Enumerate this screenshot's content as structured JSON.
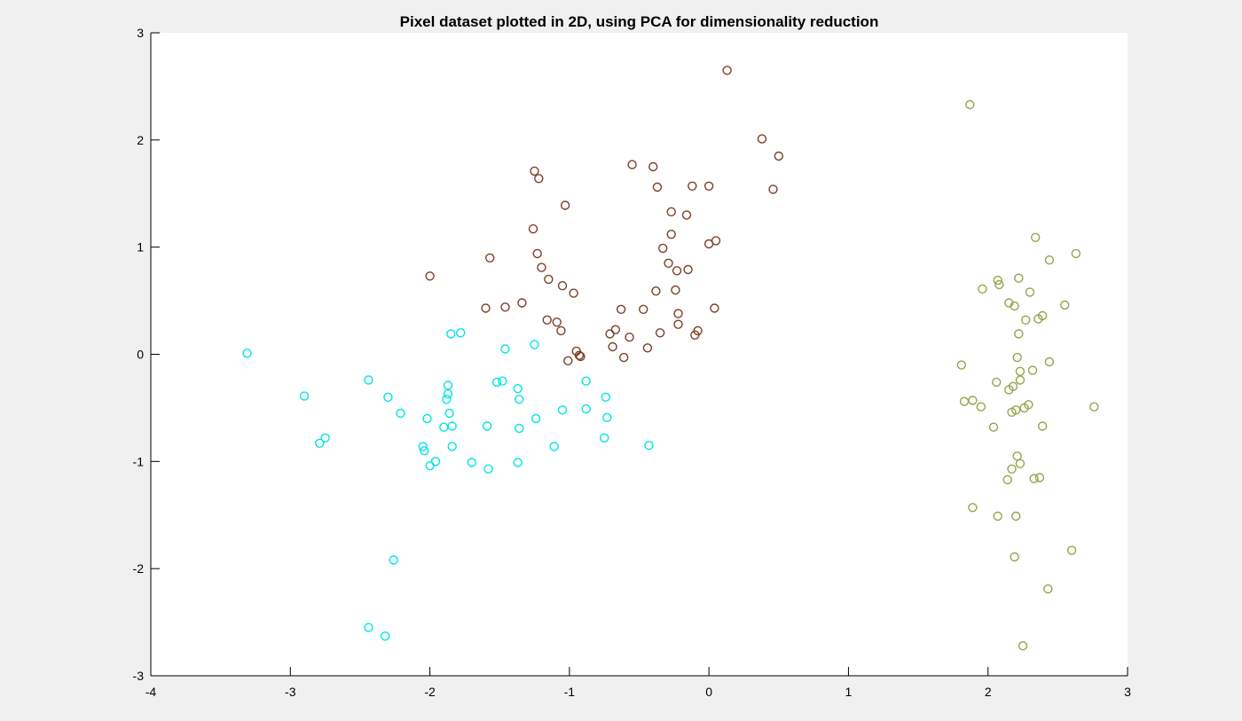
{
  "chart_data": {
    "type": "scatter",
    "title": "Pixel dataset plotted in 2D, using PCA for dimensionality reduction",
    "xlabel": "",
    "ylabel": "",
    "xlim": [
      -4,
      3
    ],
    "ylim": [
      -3,
      3
    ],
    "xticks": [
      "-4",
      "-3",
      "-2",
      "-1",
      "0",
      "1",
      "2",
      "3"
    ],
    "yticks": [
      "-3",
      "-2",
      "-1",
      "0",
      "1",
      "2",
      "3"
    ],
    "grid": false,
    "marker": "open-circle",
    "series": [
      {
        "color": "#00e5e5",
        "points": [
          [
            -3.31,
            0.01
          ],
          [
            -2.9,
            -0.39
          ],
          [
            -2.79,
            -0.83
          ],
          [
            -2.75,
            -0.78
          ],
          [
            -2.44,
            -0.24
          ],
          [
            -2.3,
            -0.4
          ],
          [
            -2.21,
            -0.55
          ],
          [
            -2.05,
            -0.86
          ],
          [
            -2.04,
            -0.9
          ],
          [
            -2.02,
            -0.6
          ],
          [
            -2.0,
            -1.04
          ],
          [
            -1.96,
            -1.0
          ],
          [
            -1.9,
            -0.68
          ],
          [
            -1.88,
            -0.42
          ],
          [
            -1.87,
            -0.37
          ],
          [
            -1.87,
            -0.29
          ],
          [
            -1.86,
            -0.55
          ],
          [
            -1.84,
            -0.67
          ],
          [
            -1.84,
            -0.86
          ],
          [
            -1.85,
            0.19
          ],
          [
            -1.78,
            0.2
          ],
          [
            -1.7,
            -1.01
          ],
          [
            -1.59,
            -0.67
          ],
          [
            -1.58,
            -1.07
          ],
          [
            -1.52,
            -0.26
          ],
          [
            -1.48,
            -0.25
          ],
          [
            -1.46,
            0.05
          ],
          [
            -1.37,
            -0.32
          ],
          [
            -1.36,
            -0.42
          ],
          [
            -1.36,
            -0.69
          ],
          [
            -1.37,
            -1.01
          ],
          [
            -1.25,
            0.09
          ],
          [
            -1.24,
            -0.6
          ],
          [
            -1.11,
            -0.86
          ],
          [
            -1.05,
            -0.52
          ],
          [
            -0.88,
            -0.25
          ],
          [
            -0.88,
            -0.51
          ],
          [
            -0.74,
            -0.4
          ],
          [
            -0.73,
            -0.59
          ],
          [
            -0.75,
            -0.78
          ],
          [
            -0.43,
            -0.85
          ],
          [
            -2.26,
            -1.92
          ],
          [
            -2.44,
            -2.55
          ],
          [
            -2.32,
            -2.63
          ]
        ]
      },
      {
        "color": "#7a3f26",
        "points": [
          [
            0.13,
            2.65
          ],
          [
            0.38,
            2.01
          ],
          [
            0.5,
            1.85
          ],
          [
            0.46,
            1.54
          ],
          [
            -0.55,
            1.77
          ],
          [
            -0.4,
            1.75
          ],
          [
            -0.37,
            1.56
          ],
          [
            -0.12,
            1.57
          ],
          [
            0.0,
            1.57
          ],
          [
            -1.25,
            1.71
          ],
          [
            -1.22,
            1.64
          ],
          [
            -1.03,
            1.39
          ],
          [
            -0.27,
            1.33
          ],
          [
            -0.16,
            1.3
          ],
          [
            -1.26,
            1.17
          ],
          [
            -0.27,
            1.12
          ],
          [
            0.0,
            1.03
          ],
          [
            0.05,
            1.06
          ],
          [
            -0.33,
            0.99
          ],
          [
            -1.23,
            0.94
          ],
          [
            -1.57,
            0.9
          ],
          [
            -0.29,
            0.85
          ],
          [
            -1.2,
            0.81
          ],
          [
            -0.23,
            0.78
          ],
          [
            -0.15,
            0.79
          ],
          [
            -2.0,
            0.73
          ],
          [
            -1.15,
            0.7
          ],
          [
            -1.05,
            0.64
          ],
          [
            -0.97,
            0.57
          ],
          [
            -0.38,
            0.59
          ],
          [
            -0.24,
            0.6
          ],
          [
            -1.34,
            0.48
          ],
          [
            -1.6,
            0.43
          ],
          [
            -1.46,
            0.44
          ],
          [
            -0.47,
            0.42
          ],
          [
            -0.63,
            0.42
          ],
          [
            0.04,
            0.43
          ],
          [
            -0.22,
            0.38
          ],
          [
            -1.16,
            0.32
          ],
          [
            -1.09,
            0.3
          ],
          [
            -0.22,
            0.28
          ],
          [
            -1.06,
            0.22
          ],
          [
            -0.67,
            0.23
          ],
          [
            -0.71,
            0.19
          ],
          [
            -0.35,
            0.2
          ],
          [
            -0.08,
            0.22
          ],
          [
            -0.1,
            0.18
          ],
          [
            -0.57,
            0.16
          ],
          [
            -0.69,
            0.07
          ],
          [
            -0.44,
            0.06
          ],
          [
            -0.95,
            0.03
          ],
          [
            -0.93,
            -0.01
          ],
          [
            -0.92,
            -0.02
          ],
          [
            -1.01,
            -0.06
          ],
          [
            -0.61,
            -0.03
          ]
        ]
      },
      {
        "color": "#8fa84a",
        "points": [
          [
            1.87,
            2.33
          ],
          [
            2.34,
            1.09
          ],
          [
            2.63,
            0.94
          ],
          [
            2.44,
            0.88
          ],
          [
            2.22,
            0.71
          ],
          [
            2.07,
            0.69
          ],
          [
            2.08,
            0.65
          ],
          [
            1.96,
            0.61
          ],
          [
            2.3,
            0.58
          ],
          [
            2.15,
            0.48
          ],
          [
            2.19,
            0.45
          ],
          [
            2.55,
            0.46
          ],
          [
            2.39,
            0.36
          ],
          [
            2.36,
            0.33
          ],
          [
            2.27,
            0.32
          ],
          [
            2.22,
            0.19
          ],
          [
            2.21,
            -0.03
          ],
          [
            1.81,
            -0.1
          ],
          [
            2.44,
            -0.07
          ],
          [
            2.23,
            -0.16
          ],
          [
            2.32,
            -0.15
          ],
          [
            2.06,
            -0.26
          ],
          [
            2.23,
            -0.24
          ],
          [
            2.18,
            -0.3
          ],
          [
            2.15,
            -0.33
          ],
          [
            1.83,
            -0.44
          ],
          [
            1.89,
            -0.43
          ],
          [
            1.95,
            -0.49
          ],
          [
            2.29,
            -0.47
          ],
          [
            2.26,
            -0.5
          ],
          [
            2.2,
            -0.52
          ],
          [
            2.17,
            -0.54
          ],
          [
            2.76,
            -0.49
          ],
          [
            2.04,
            -0.68
          ],
          [
            2.39,
            -0.67
          ],
          [
            2.21,
            -0.95
          ],
          [
            2.23,
            -1.02
          ],
          [
            2.17,
            -1.07
          ],
          [
            2.14,
            -1.17
          ],
          [
            2.33,
            -1.16
          ],
          [
            2.37,
            -1.15
          ],
          [
            1.89,
            -1.43
          ],
          [
            2.07,
            -1.51
          ],
          [
            2.2,
            -1.51
          ],
          [
            2.6,
            -1.83
          ],
          [
            2.19,
            -1.89
          ],
          [
            2.43,
            -2.19
          ],
          [
            2.25,
            -2.72
          ]
        ]
      }
    ]
  }
}
